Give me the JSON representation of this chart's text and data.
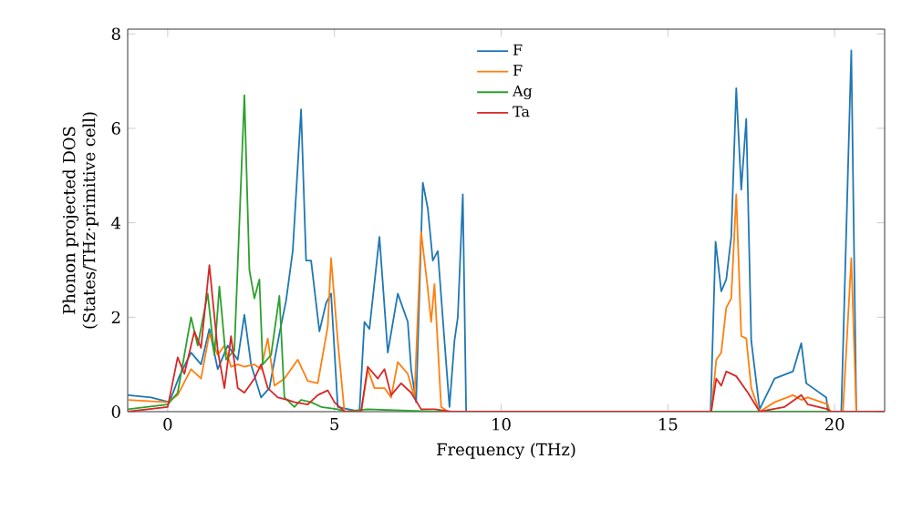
{
  "chart_data": {
    "type": "line",
    "xlabel": "Frequency (THz)",
    "ylabel": "Phonon projected DOS\n(States/THz·primitive cell)",
    "xlim": [
      -1.2,
      21.5
    ],
    "ylim": [
      0,
      8.1
    ],
    "xticks": [
      0,
      5,
      10,
      15,
      20
    ],
    "yticks": [
      0,
      2,
      4,
      6,
      8
    ],
    "legend": "top",
    "grid": false,
    "series": [
      {
        "name": "F",
        "color": "#1f77b4",
        "x": [
          -1.2,
          -0.5,
          0.05,
          0.35,
          0.7,
          1.0,
          1.25,
          1.5,
          1.8,
          2.1,
          2.3,
          2.5,
          2.8,
          3.05,
          3.35,
          3.55,
          3.75,
          4.0,
          4.15,
          4.3,
          4.55,
          4.75,
          4.9,
          5.1,
          5.75,
          5.9,
          6.05,
          6.35,
          6.6,
          6.9,
          7.2,
          7.3,
          7.45,
          7.65,
          7.8,
          7.95,
          8.1,
          8.3,
          8.45,
          8.6,
          8.7,
          8.85,
          8.95,
          16.28,
          16.43,
          16.6,
          16.75,
          16.9,
          17.05,
          17.2,
          17.35,
          17.5,
          17.75,
          18.2,
          18.75,
          19.0,
          19.15,
          19.75,
          19.8,
          20.2,
          20.5,
          20.65,
          21.5
        ],
        "values": [
          0.35,
          0.3,
          0.2,
          0.75,
          1.25,
          1.0,
          1.75,
          0.9,
          1.4,
          1.1,
          2.05,
          1.0,
          0.3,
          0.5,
          1.65,
          2.35,
          3.4,
          6.4,
          3.2,
          3.2,
          1.7,
          2.3,
          2.5,
          0.1,
          0,
          1.9,
          1.75,
          3.7,
          1.25,
          2.5,
          1.9,
          0.9,
          0.2,
          4.85,
          4.3,
          3.2,
          3.4,
          1.5,
          0.1,
          1.5,
          2.0,
          4.6,
          0,
          0,
          3.6,
          2.55,
          2.8,
          3.7,
          6.85,
          4.7,
          6.2,
          1.5,
          0.05,
          0.7,
          0.85,
          1.45,
          0.6,
          0.3,
          0,
          0,
          7.65,
          0,
          0
        ]
      },
      {
        "name": "F",
        "color": "#ff7f0e",
        "x": [
          -1.2,
          0,
          0.3,
          0.7,
          1.0,
          1.25,
          1.5,
          1.7,
          1.9,
          2.1,
          2.3,
          2.6,
          2.8,
          3.0,
          3.2,
          3.5,
          3.9,
          4.2,
          4.5,
          4.8,
          4.9,
          5.1,
          5.3,
          5.8,
          6.0,
          6.2,
          6.5,
          6.7,
          6.9,
          7.2,
          7.4,
          7.6,
          7.8,
          7.9,
          8.0,
          8.2,
          8.4,
          16.3,
          16.45,
          16.6,
          16.75,
          16.9,
          17.05,
          17.2,
          17.35,
          17.5,
          17.75,
          18.2,
          18.75,
          19.0,
          19.2,
          19.8,
          19.85,
          20.25,
          20.5,
          20.65,
          21.5
        ],
        "values": [
          0.25,
          0.2,
          0.35,
          0.9,
          0.7,
          1.65,
          1.2,
          1.4,
          0.95,
          1.0,
          0.95,
          1.0,
          0.9,
          1.55,
          0.55,
          0.7,
          1.1,
          0.65,
          0.6,
          1.8,
          3.25,
          1.5,
          0,
          0,
          0.9,
          0.5,
          0.5,
          0.3,
          1.05,
          0.8,
          0.3,
          3.8,
          2.6,
          1.9,
          2.7,
          0.1,
          0,
          0,
          1.1,
          1.25,
          2.2,
          2.4,
          4.6,
          1.6,
          1.55,
          0.5,
          0,
          0.2,
          0.35,
          0.25,
          0.3,
          0.15,
          0,
          0,
          3.25,
          0,
          0
        ]
      },
      {
        "name": "Ag",
        "color": "#2ca02c",
        "x": [
          -1.2,
          0,
          0.3,
          0.7,
          0.9,
          1.2,
          1.4,
          1.55,
          1.75,
          2.0,
          2.3,
          2.45,
          2.6,
          2.75,
          2.85,
          3.1,
          3.35,
          3.5,
          3.8,
          4.0,
          4.3,
          4.6,
          5.1,
          5.3,
          6.0,
          8.0,
          21.5
        ],
        "values": [
          0.05,
          0.15,
          0.4,
          2.0,
          1.4,
          2.5,
          1.2,
          2.65,
          1.1,
          1.3,
          6.7,
          3.0,
          2.4,
          2.8,
          1.0,
          1.2,
          2.45,
          0.3,
          0.1,
          0.25,
          0.2,
          0.1,
          0.05,
          0,
          0.05,
          0,
          0
        ]
      },
      {
        "name": "Ta",
        "color": "#d62728",
        "x": [
          -1.2,
          0,
          0.3,
          0.5,
          0.8,
          1.0,
          1.25,
          1.5,
          1.7,
          1.9,
          2.1,
          2.3,
          2.6,
          2.8,
          3.0,
          3.3,
          3.6,
          3.8,
          4.2,
          4.5,
          4.8,
          5.0,
          5.3,
          5.8,
          6.0,
          6.3,
          6.5,
          6.7,
          7.0,
          7.3,
          7.6,
          8.0,
          8.5,
          16.3,
          16.45,
          16.6,
          16.75,
          17.05,
          17.4,
          17.75,
          18.5,
          19.0,
          19.2,
          19.8,
          19.9,
          21.5
        ],
        "values": [
          0,
          0.1,
          1.15,
          0.8,
          1.7,
          1.35,
          3.1,
          1.3,
          0.5,
          1.6,
          0.5,
          0.4,
          0.7,
          1.0,
          0.5,
          0.3,
          0.25,
          0.2,
          0.15,
          0.35,
          0.45,
          0.2,
          0,
          0,
          0.95,
          0.7,
          0.9,
          0.35,
          0.6,
          0.4,
          0.05,
          0.05,
          0,
          0,
          0.7,
          0.55,
          0.85,
          0.75,
          0.4,
          0,
          0.1,
          0.35,
          0.15,
          0.05,
          0,
          0
        ]
      }
    ]
  }
}
